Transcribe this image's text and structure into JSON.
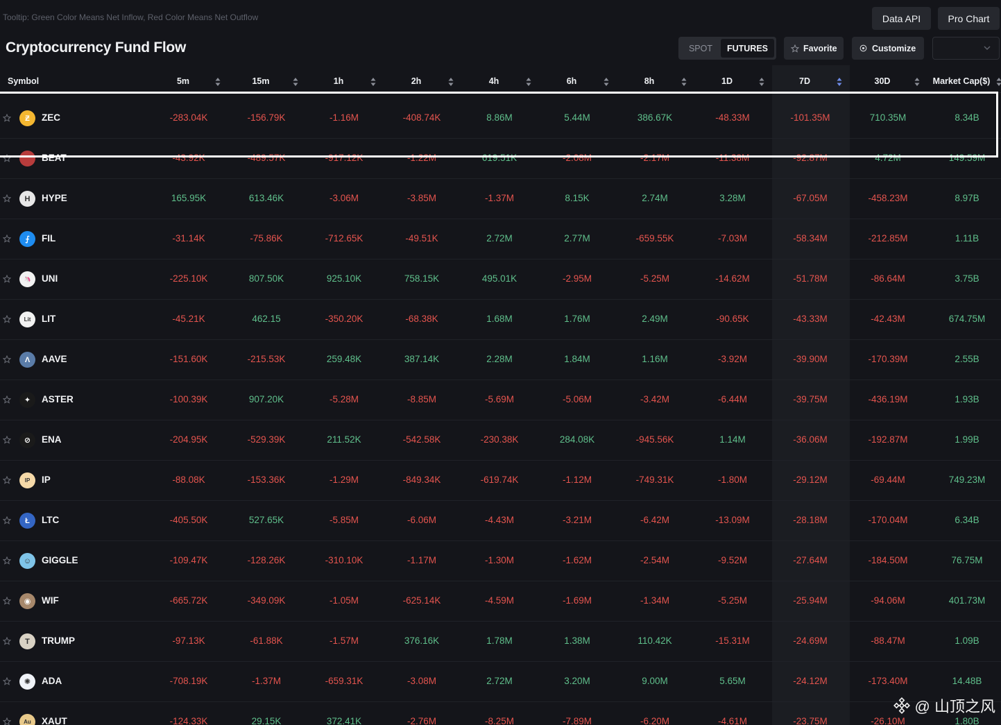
{
  "tooltip": "Tooltip: Green Color Means Net Inflow, Red Color Means Net Outflow",
  "header": {
    "data_api": "Data API",
    "pro_chart": "Pro Chart",
    "title": "Cryptocurrency Fund Flow",
    "spot": "SPOT",
    "futures": "FUTURES",
    "favorite": "Favorite",
    "customize": "Customize"
  },
  "columns": [
    "Symbol",
    "5m",
    "15m",
    "1h",
    "2h",
    "4h",
    "6h",
    "8h",
    "1D",
    "7D",
    "30D",
    "Market Cap($)"
  ],
  "rows": [
    {
      "symbol": "ZEC",
      "color": "#f4b731",
      "glyph": "Ƶ",
      "values": [
        "-283.04K",
        "-156.79K",
        "-1.16M",
        "-408.74K",
        "8.86M",
        "5.44M",
        "386.67K",
        "-48.33M",
        "-101.35M",
        "710.35M",
        "8.34B"
      ]
    },
    {
      "symbol": "BEAT",
      "color": "#b73c3c",
      "glyph": "",
      "values": [
        "-43.92K",
        "-489.57K",
        "-917.12K",
        "-1.22M",
        "619.51K",
        "-2.08M",
        "-2.17M",
        "-11.38M",
        "-92.87M",
        "4.72M",
        "149.59M"
      ]
    },
    {
      "symbol": "HYPE",
      "color": "#e8e8e8",
      "glyph": "H",
      "values": [
        "165.95K",
        "613.46K",
        "-3.06M",
        "-3.85M",
        "-1.37M",
        "8.15K",
        "2.74M",
        "3.28M",
        "-67.05M",
        "-458.23M",
        "8.97B"
      ]
    },
    {
      "symbol": "FIL",
      "color": "#1e8cf0",
      "glyph": "⨍",
      "values": [
        "-31.14K",
        "-75.86K",
        "-712.65K",
        "-49.51K",
        "2.72M",
        "2.77M",
        "-659.55K",
        "-7.03M",
        "-58.34M",
        "-212.85M",
        "1.11B"
      ]
    },
    {
      "symbol": "UNI",
      "color": "#f2f2f2",
      "glyph": "🦄",
      "values": [
        "-225.10K",
        "807.50K",
        "925.10K",
        "758.15K",
        "495.01K",
        "-2.95M",
        "-5.25M",
        "-14.62M",
        "-51.78M",
        "-86.64M",
        "3.75B"
      ]
    },
    {
      "symbol": "LIT",
      "color": "#f2f2f2",
      "glyph": "Lit",
      "values": [
        "-45.21K",
        "462.15",
        "-350.20K",
        "-68.38K",
        "1.68M",
        "1.76M",
        "2.49M",
        "-90.65K",
        "-43.33M",
        "-42.43M",
        "674.75M"
      ]
    },
    {
      "symbol": "AAVE",
      "color": "#5a7ca8",
      "glyph": "Λ",
      "values": [
        "-151.60K",
        "-215.53K",
        "259.48K",
        "387.14K",
        "2.28M",
        "1.84M",
        "1.16M",
        "-3.92M",
        "-39.90M",
        "-170.39M",
        "2.55B"
      ]
    },
    {
      "symbol": "ASTER",
      "color": "#1a1a1a",
      "glyph": "✦",
      "values": [
        "-100.39K",
        "907.20K",
        "-5.28M",
        "-8.85M",
        "-5.69M",
        "-5.06M",
        "-3.42M",
        "-6.44M",
        "-39.75M",
        "-436.19M",
        "1.93B"
      ]
    },
    {
      "symbol": "ENA",
      "color": "#1a1a1a",
      "glyph": "⊘",
      "values": [
        "-204.95K",
        "-529.39K",
        "211.52K",
        "-542.58K",
        "-230.38K",
        "284.08K",
        "-945.56K",
        "1.14M",
        "-36.06M",
        "-192.87M",
        "1.99B"
      ]
    },
    {
      "symbol": "IP",
      "color": "#f5d9a8",
      "glyph": "IP",
      "values": [
        "-88.08K",
        "-153.36K",
        "-1.29M",
        "-849.34K",
        "-619.74K",
        "-1.12M",
        "-749.31K",
        "-1.80M",
        "-29.12M",
        "-69.44M",
        "749.23M"
      ]
    },
    {
      "symbol": "LTC",
      "color": "#3466c4",
      "glyph": "Ł",
      "values": [
        "-405.50K",
        "527.65K",
        "-5.85M",
        "-6.06M",
        "-4.43M",
        "-3.21M",
        "-6.42M",
        "-13.09M",
        "-28.18M",
        "-170.04M",
        "6.34B"
      ]
    },
    {
      "symbol": "GIGGLE",
      "color": "#7fc4e8",
      "glyph": "☺",
      "values": [
        "-109.47K",
        "-128.26K",
        "-310.10K",
        "-1.17M",
        "-1.30M",
        "-1.62M",
        "-2.54M",
        "-9.52M",
        "-27.64M",
        "-184.50M",
        "76.75M"
      ]
    },
    {
      "symbol": "WIF",
      "color": "#a7886b",
      "glyph": "◉",
      "values": [
        "-665.72K",
        "-349.09K",
        "-1.05M",
        "-625.14K",
        "-4.59M",
        "-1.69M",
        "-1.34M",
        "-5.25M",
        "-25.94M",
        "-94.06M",
        "401.73M"
      ]
    },
    {
      "symbol": "TRUMP",
      "color": "#d9d2c4",
      "glyph": "T",
      "values": [
        "-97.13K",
        "-61.88K",
        "-1.57M",
        "376.16K",
        "1.78M",
        "1.38M",
        "110.42K",
        "-15.31M",
        "-24.69M",
        "-88.47M",
        "1.09B"
      ]
    },
    {
      "symbol": "ADA",
      "color": "#f0f3f8",
      "glyph": "✺",
      "values": [
        "-708.19K",
        "-1.37M",
        "-659.31K",
        "-3.08M",
        "2.72M",
        "3.20M",
        "9.00M",
        "5.65M",
        "-24.12M",
        "-173.40M",
        "14.48B"
      ]
    },
    {
      "symbol": "XAUT",
      "color": "#e8c98a",
      "glyph": "Au",
      "values": [
        "-124.33K",
        "29.15K",
        "372.41K",
        "-2.76M",
        "-8.25M",
        "-7.89M",
        "-6.20M",
        "-4.61M",
        "-23.75M",
        "-26.10M",
        "1.80B"
      ]
    }
  ],
  "colors": {
    "inflow": "#5fbf8b",
    "outflow": "#e4544e"
  },
  "watermark": "@ 山顶之风"
}
